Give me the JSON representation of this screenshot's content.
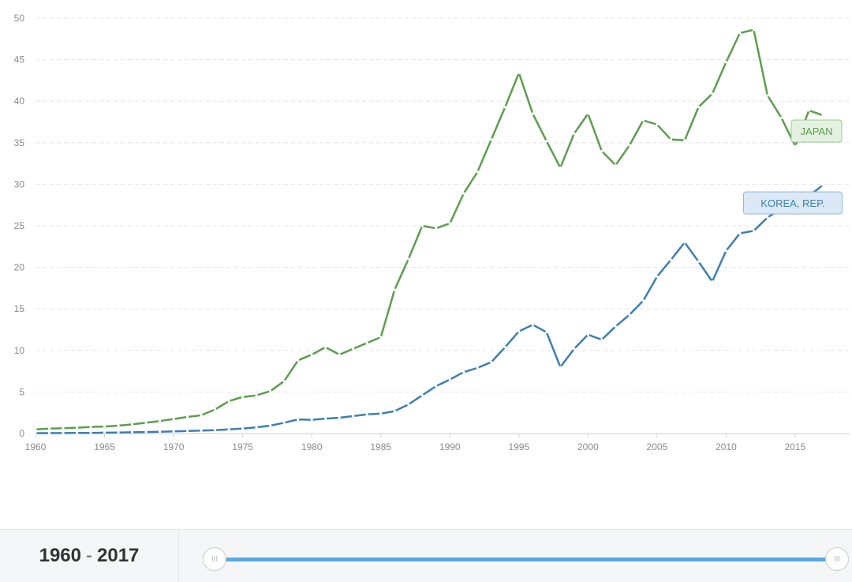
{
  "chart_data": {
    "type": "line",
    "x": [
      1960,
      1961,
      1962,
      1963,
      1964,
      1965,
      1966,
      1967,
      1968,
      1969,
      1970,
      1971,
      1972,
      1973,
      1974,
      1975,
      1976,
      1977,
      1978,
      1979,
      1980,
      1981,
      1982,
      1983,
      1984,
      1985,
      1986,
      1987,
      1988,
      1989,
      1990,
      1991,
      1992,
      1993,
      1994,
      1995,
      1996,
      1997,
      1998,
      1999,
      2000,
      2001,
      2002,
      2003,
      2004,
      2005,
      2006,
      2007,
      2008,
      2009,
      2010,
      2011,
      2012,
      2013,
      2014,
      2015,
      2016,
      2017
    ],
    "xticks": [
      1960,
      1965,
      1970,
      1975,
      1980,
      1985,
      1990,
      1995,
      2000,
      2005,
      2010,
      2015
    ],
    "yticks": [
      0,
      5,
      10,
      15,
      20,
      25,
      30,
      35,
      40,
      45,
      50
    ],
    "xlim": [
      1960,
      2019
    ],
    "ylim": [
      0,
      50
    ],
    "grid": true,
    "series": [
      {
        "name": "JAPAN",
        "color": "#5d9e4f",
        "values": [
          0.5,
          0.6,
          0.65,
          0.7,
          0.8,
          0.85,
          0.95,
          1.1,
          1.3,
          1.5,
          1.75,
          2.0,
          2.2,
          2.9,
          3.9,
          4.4,
          4.6,
          5.1,
          6.3,
          8.8,
          9.5,
          10.4,
          9.5,
          10.2,
          10.9,
          11.6,
          17.3,
          21.0,
          25.0,
          24.7,
          25.3,
          28.9,
          31.5,
          35.4,
          39.3,
          43.4,
          38.5,
          35.2,
          32.0,
          36.1,
          38.5,
          34.0,
          32.3,
          34.7,
          37.7,
          37.2,
          35.4,
          35.3,
          39.3,
          40.9,
          44.7,
          48.2,
          48.6,
          40.7,
          38.0,
          34.6,
          38.9,
          38.3
        ]
      },
      {
        "name": "KOREA, REP.",
        "color": "#3d7fb0",
        "values": [
          0.05,
          0.05,
          0.06,
          0.07,
          0.08,
          0.1,
          0.12,
          0.15,
          0.18,
          0.22,
          0.26,
          0.3,
          0.35,
          0.4,
          0.5,
          0.6,
          0.75,
          0.95,
          1.3,
          1.7,
          1.65,
          1.8,
          1.9,
          2.1,
          2.3,
          2.4,
          2.7,
          3.5,
          4.6,
          5.7,
          6.5,
          7.4,
          7.9,
          8.6,
          10.4,
          12.3,
          13.1,
          12.2,
          8.0,
          10.2,
          11.9,
          11.3,
          12.9,
          14.3,
          16.0,
          18.9,
          20.9,
          23.0,
          20.7,
          18.3,
          22.0,
          24.1,
          24.4,
          26.0,
          27.1,
          28.3,
          28.6,
          29.9
        ]
      }
    ]
  },
  "range": {
    "start": "1960",
    "separator": "-",
    "end": "2017"
  },
  "slider": {
    "handle_glyph": "III"
  }
}
